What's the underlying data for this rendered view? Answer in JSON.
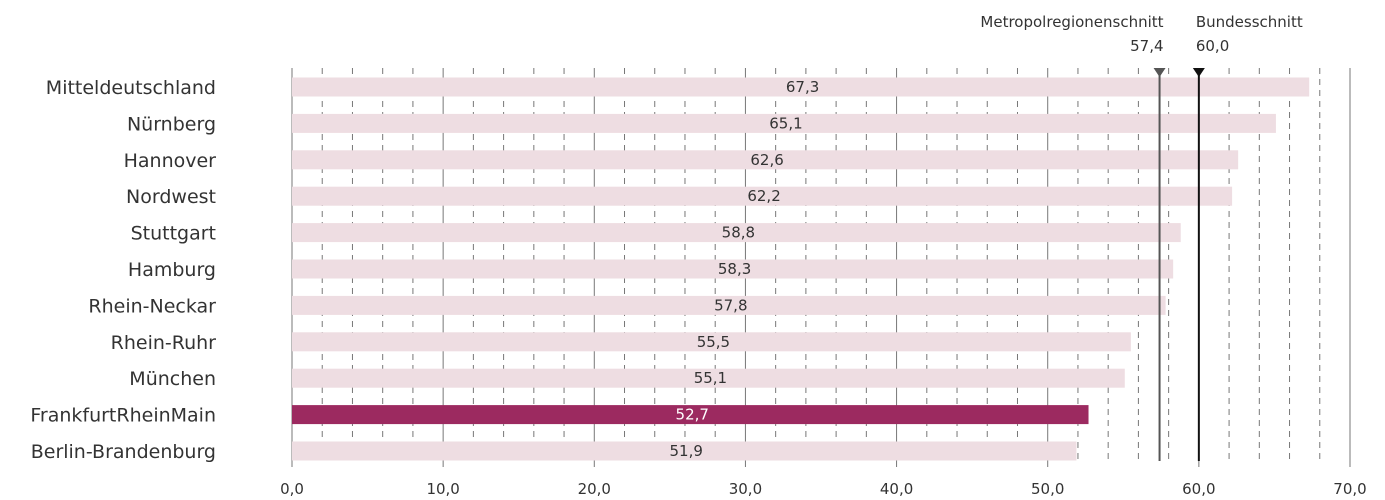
{
  "chart_data": {
    "type": "bar",
    "orientation": "horizontal",
    "categories": [
      "Mitteldeutschland",
      "Nürnberg",
      "Hannover",
      "Nordwest",
      "Stuttgart",
      "Hamburg",
      "Rhein-Neckar",
      "Rhein-Ruhr",
      "München",
      "FrankfurtRheinMain",
      "Berlin-Brandenburg"
    ],
    "values": [
      67.3,
      65.1,
      62.6,
      62.2,
      58.8,
      58.3,
      57.8,
      55.5,
      55.1,
      52.7,
      51.9
    ],
    "value_labels": [
      "67,3",
      "65,1",
      "62,6",
      "62,2",
      "58,8",
      "58,3",
      "57,8",
      "55,5",
      "55,1",
      "52,7",
      "51,9"
    ],
    "highlight": "FrankfurtRheinMain",
    "xlim": [
      0,
      70
    ],
    "x_ticks": [
      0,
      10,
      20,
      30,
      40,
      50,
      60,
      70
    ],
    "x_tick_labels": [
      "0,0",
      "10,0",
      "20,0",
      "30,0",
      "40,0",
      "50,0",
      "60,0",
      "70,0"
    ],
    "minor_grid_step": 2,
    "grid": true,
    "reference_lines": [
      {
        "name": "Metropolregionenschnitt",
        "value": 57.4,
        "value_label": "57,4",
        "color": "#555555"
      },
      {
        "name": "Bundesschnitt",
        "value": 60.0,
        "value_label": "60,0",
        "color": "#111111"
      }
    ],
    "colors": {
      "bar": "#eedde2",
      "highlight_bar": "#9c2a60",
      "text": "#333333",
      "highlight_text": "#ffffff",
      "grid": "#777777"
    }
  }
}
